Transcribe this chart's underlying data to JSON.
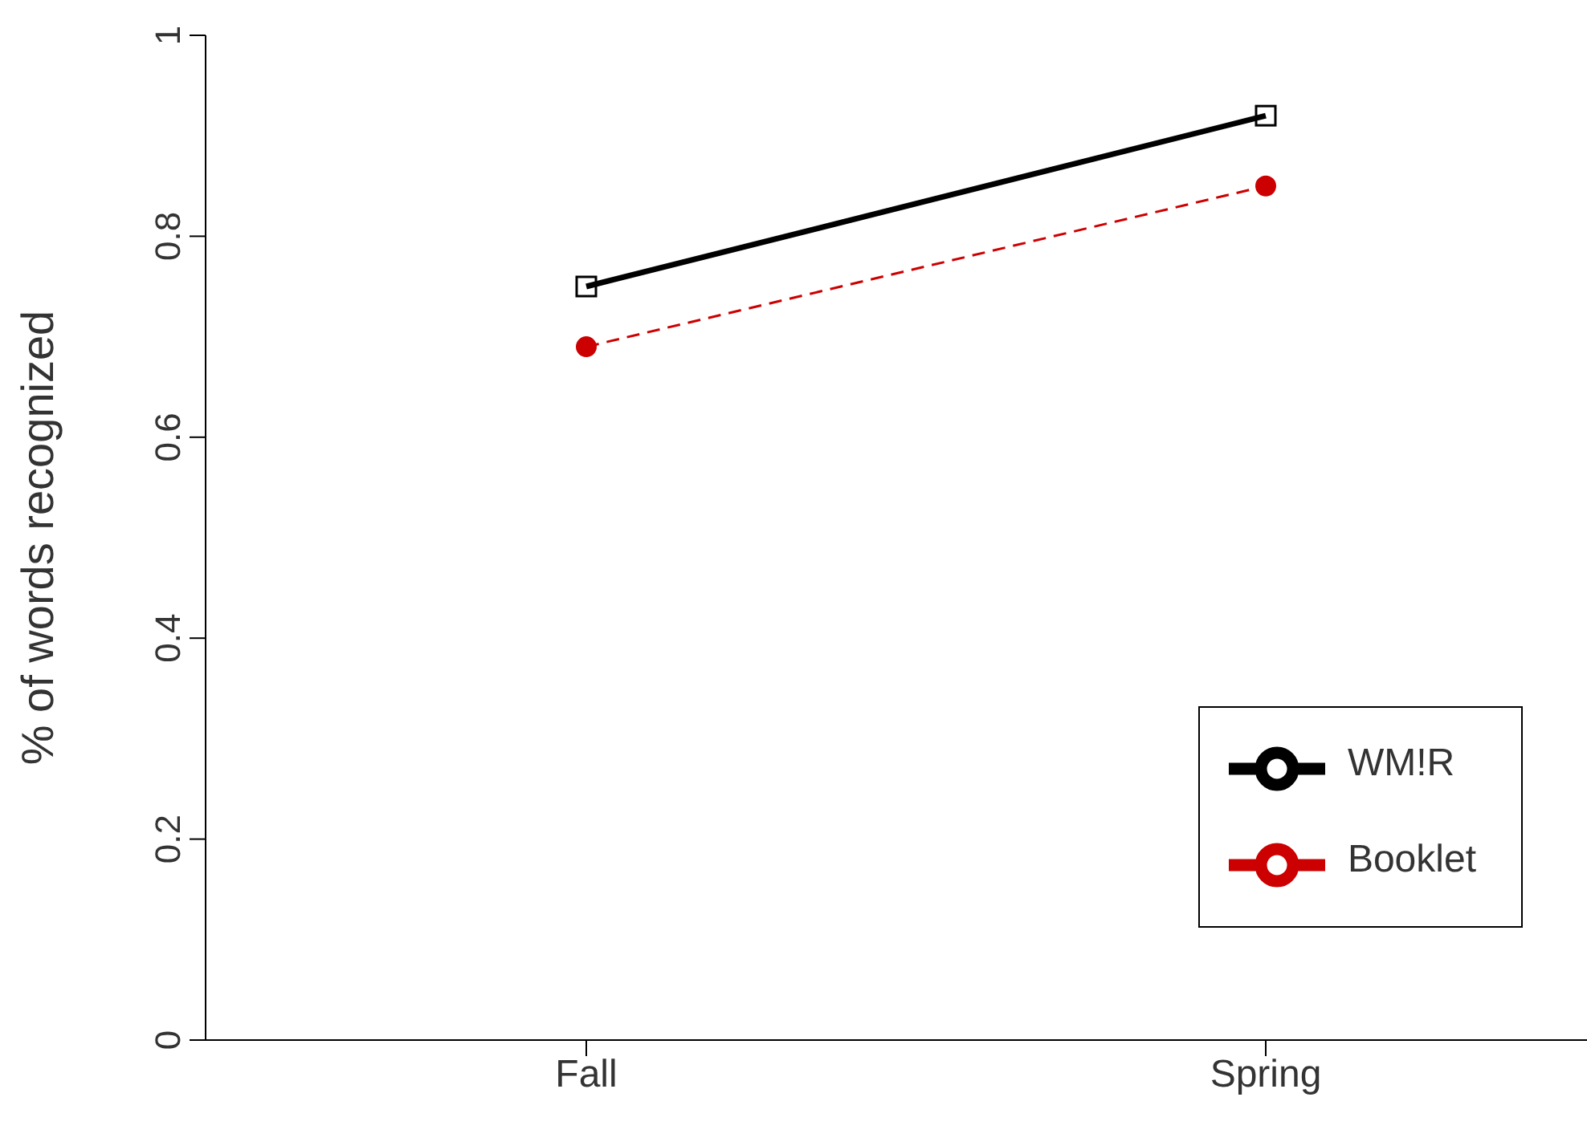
{
  "chart_data": {
    "type": "line",
    "ylabel": "% of words recognized",
    "categories": [
      "Fall",
      "Spring"
    ],
    "series": [
      {
        "name": "WM!R",
        "color": "#000000",
        "values": [
          0.75,
          0.92
        ],
        "marker": "square",
        "line_style": "solid"
      },
      {
        "name": "Booklet",
        "color": "#cc0000",
        "values": [
          0.69,
          0.85
        ],
        "marker": "circle",
        "line_style": "dashed"
      }
    ],
    "ylim": [
      0,
      1
    ],
    "yticks": [
      0,
      0.2,
      0.4,
      0.6,
      0.8,
      1
    ],
    "grid": false,
    "legend": "bottom right"
  }
}
